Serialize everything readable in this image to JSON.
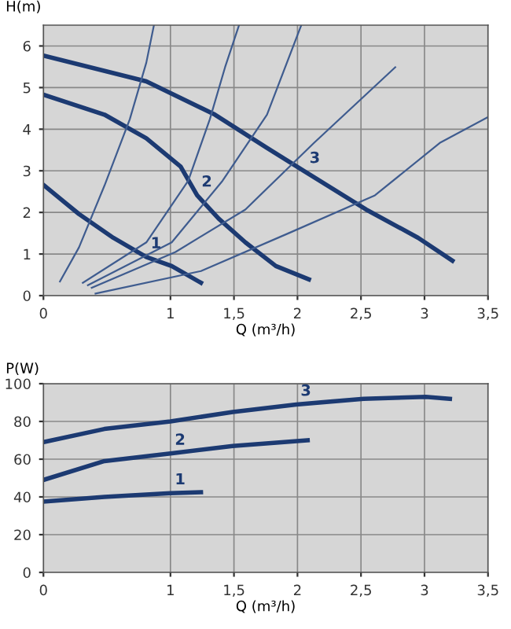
{
  "chart_data": [
    {
      "type": "line",
      "xlabel": "Q (m³/h)",
      "ylabel": "H(m)",
      "xlim": [
        0,
        3.5
      ],
      "ylim": [
        0,
        6.5
      ],
      "xticks": [
        0,
        1,
        {
          "value": 1.5,
          "label": "1,5"
        },
        2,
        {
          "value": 2.5,
          "label": "2,5"
        },
        3,
        {
          "value": 3.5,
          "label": "3,5"
        }
      ],
      "yticks": [
        0,
        1,
        2,
        3,
        4,
        5,
        6
      ],
      "grid": true,
      "line_style": "solid",
      "marker": "none",
      "series": [
        {
          "name": "3",
          "color": "#1c3a72",
          "x": [
            0,
            0.81,
            1.35,
            1.76,
            2.06,
            2.54,
            2.95,
            3.22
          ],
          "values": [
            5.77,
            5.15,
            4.35,
            3.55,
            2.98,
            2.07,
            1.39,
            0.84
          ]
        },
        {
          "name": "2",
          "color": "#1c3a72",
          "x": [
            0,
            0.48,
            0.81,
            1.08,
            1.21,
            1.38,
            1.59,
            1.83,
            2.09
          ],
          "values": [
            4.83,
            4.35,
            3.78,
            3.1,
            2.41,
            1.85,
            1.28,
            0.71,
            0.39
          ]
        },
        {
          "name": "1",
          "color": "#1c3a72",
          "x": [
            0,
            0.28,
            0.55,
            0.81,
            1.01,
            1.24
          ],
          "values": [
            2.66,
            1.96,
            1.39,
            0.93,
            0.71,
            0.31
          ]
        },
        {
          "color": "#3f5c8f",
          "x": [
            0.13,
            0.28,
            0.48,
            0.68,
            0.81,
            0.87
          ],
          "values": [
            0.34,
            1.16,
            2.64,
            4.24,
            5.6,
            6.5
          ]
        },
        {
          "color": "#3f5c8f",
          "x": [
            0.31,
            0.81,
            1.14,
            1.31,
            1.43,
            1.54
          ],
          "values": [
            0.31,
            1.28,
            2.76,
            4.24,
            5.49,
            6.5
          ]
        },
        {
          "color": "#3f5c8f",
          "x": [
            0.35,
            1.01,
            1.41,
            1.76,
            2.03
          ],
          "values": [
            0.25,
            1.28,
            2.76,
            4.35,
            6.5
          ]
        },
        {
          "color": "#3f5c8f",
          "x": [
            0.38,
            1.04,
            1.59,
            2.13,
            2.77
          ],
          "values": [
            0.19,
            1.05,
            2.07,
            3.67,
            5.49
          ]
        },
        {
          "color": "#3f5c8f",
          "x": [
            0.41,
            1.24,
            1.93,
            2.61,
            3.12,
            3.5
          ],
          "values": [
            0.05,
            0.59,
            1.5,
            2.41,
            3.67,
            4.29
          ]
        }
      ]
    },
    {
      "type": "line",
      "xlabel": "Q (m³/h)",
      "ylabel": "P(W)",
      "xlim": [
        0,
        3.5
      ],
      "ylim": [
        0,
        100
      ],
      "xticks": [
        0,
        1,
        {
          "value": 1.5,
          "label": "1,5"
        },
        2,
        {
          "value": 2.5,
          "label": "2,5"
        },
        3,
        {
          "value": 3.5,
          "label": "3,5"
        }
      ],
      "yticks": [
        0,
        20,
        40,
        60,
        80,
        100
      ],
      "grid": true,
      "line_style": "solid",
      "marker": "none",
      "series": [
        {
          "name": "3",
          "color": "#1c3a72",
          "x": [
            0,
            0.48,
            1.0,
            1.49,
            1.99,
            2.52,
            3.01,
            3.2
          ],
          "values": [
            69,
            76,
            80,
            85,
            89,
            92,
            93,
            92
          ]
        },
        {
          "name": "2",
          "color": "#1c3a72",
          "x": [
            0,
            0.48,
            1.0,
            1.49,
            2.08
          ],
          "values": [
            49,
            59,
            63,
            67,
            70
          ]
        },
        {
          "name": "1",
          "color": "#1c3a72",
          "x": [
            0,
            0.48,
            1.0,
            1.24
          ],
          "values": [
            37.5,
            40,
            42,
            42.5
          ]
        }
      ]
    }
  ]
}
